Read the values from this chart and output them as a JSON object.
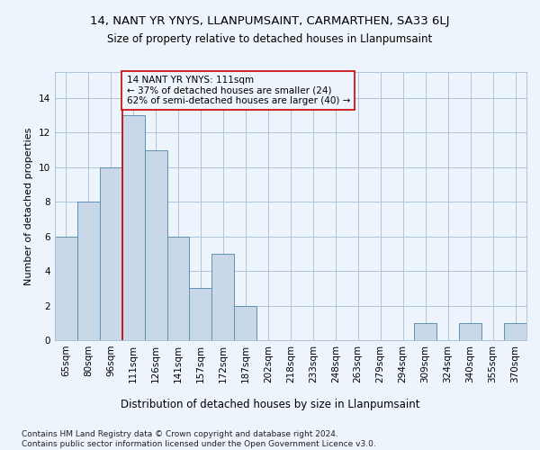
{
  "title1": "14, NANT YR YNYS, LLANPUMSAINT, CARMARTHEN, SA33 6LJ",
  "title2": "Size of property relative to detached houses in Llanpumsaint",
  "xlabel": "Distribution of detached houses by size in Llanpumsaint",
  "ylabel": "Number of detached properties",
  "categories": [
    "65sqm",
    "80sqm",
    "96sqm",
    "111sqm",
    "126sqm",
    "141sqm",
    "157sqm",
    "172sqm",
    "187sqm",
    "202sqm",
    "218sqm",
    "233sqm",
    "248sqm",
    "263sqm",
    "279sqm",
    "294sqm",
    "309sqm",
    "324sqm",
    "340sqm",
    "355sqm",
    "370sqm"
  ],
  "values": [
    6,
    8,
    10,
    13,
    11,
    6,
    3,
    5,
    2,
    0,
    0,
    0,
    0,
    0,
    0,
    0,
    1,
    0,
    1,
    0,
    1
  ],
  "bar_color": "#c8d8e8",
  "bar_edge_color": "#6090b0",
  "grid_color": "#aec4d8",
  "background_color": "#eef4fb",
  "marker_line_color": "#cc0000",
  "annotation_text": "14 NANT YR YNYS: 111sqm\n← 37% of detached houses are smaller (24)\n62% of semi-detached houses are larger (40) →",
  "annotation_box_color": "#cc0000",
  "ylim": [
    0,
    15.5
  ],
  "yticks": [
    0,
    2,
    4,
    6,
    8,
    10,
    12,
    14
  ],
  "footnote": "Contains HM Land Registry data © Crown copyright and database right 2024.\nContains public sector information licensed under the Open Government Licence v3.0.",
  "title1_fontsize": 9.5,
  "title2_fontsize": 8.5,
  "xlabel_fontsize": 8.5,
  "ylabel_fontsize": 8,
  "tick_fontsize": 7.5,
  "annot_fontsize": 7.5,
  "footnote_fontsize": 6.5
}
